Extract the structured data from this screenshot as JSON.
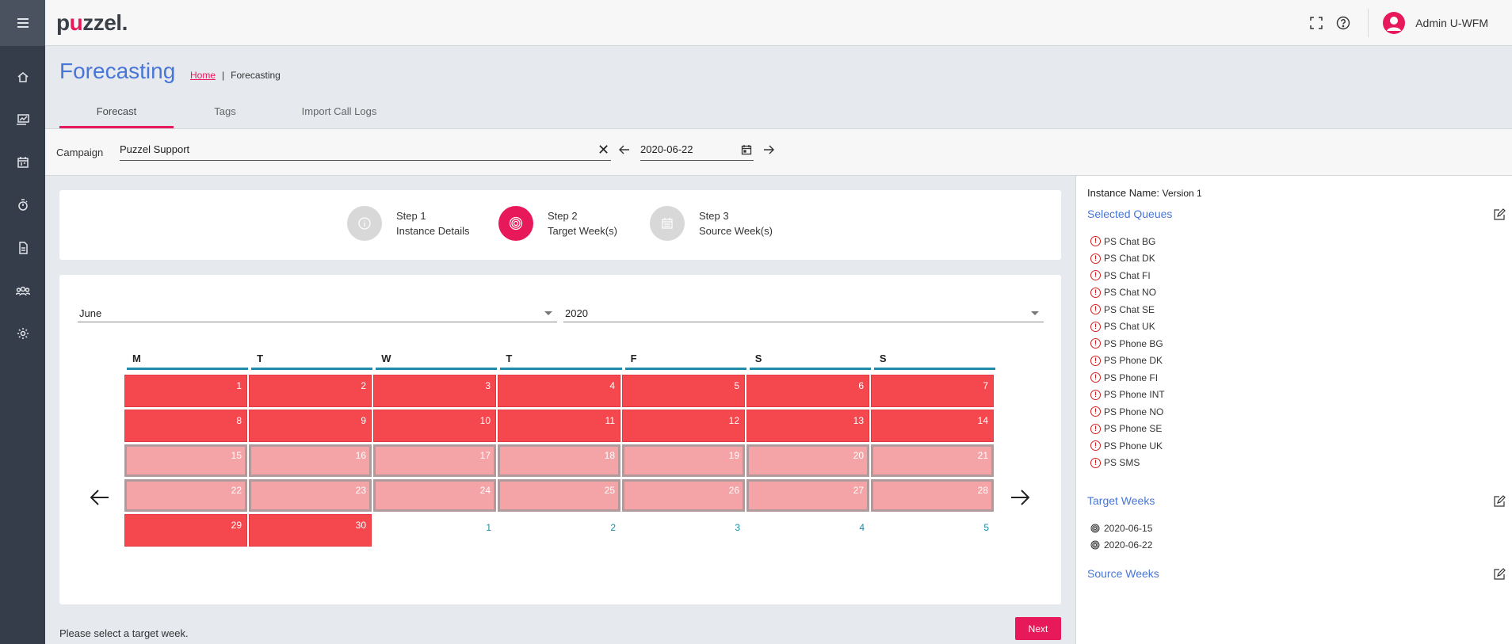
{
  "app": {
    "logo_text_pre": "p",
    "logo_text_u": "u",
    "logo_text_post": "zzel."
  },
  "topbar": {
    "user_name": "Admin U-WFM"
  },
  "header": {
    "title": "Forecasting",
    "breadcrumb": {
      "home": "Home",
      "separator": "|",
      "current": "Forecasting"
    },
    "tabs": [
      {
        "label": "Forecast",
        "active": true
      },
      {
        "label": "Tags",
        "active": false
      },
      {
        "label": "Import Call Logs",
        "active": false
      }
    ]
  },
  "campaign": {
    "label": "Campaign",
    "value": "Puzzel Support",
    "date": "2020-06-22"
  },
  "steps": [
    {
      "title": "Step 1",
      "subtitle": "Instance Details",
      "active": false
    },
    {
      "title": "Step 2",
      "subtitle": "Target Week(s)",
      "active": true
    },
    {
      "title": "Step 3",
      "subtitle": "Source Week(s)",
      "active": false
    }
  ],
  "calendar": {
    "month": "June",
    "year": "2020",
    "days_of_week": [
      "M",
      "T",
      "W",
      "T",
      "F",
      "S",
      "S"
    ],
    "rows": [
      [
        {
          "d": "1",
          "s": "target"
        },
        {
          "d": "2",
          "s": "target"
        },
        {
          "d": "3",
          "s": "target"
        },
        {
          "d": "4",
          "s": "target"
        },
        {
          "d": "5",
          "s": "target"
        },
        {
          "d": "6",
          "s": "target"
        },
        {
          "d": "7",
          "s": "target"
        }
      ],
      [
        {
          "d": "8",
          "s": "target"
        },
        {
          "d": "9",
          "s": "target"
        },
        {
          "d": "10",
          "s": "target"
        },
        {
          "d": "11",
          "s": "target"
        },
        {
          "d": "12",
          "s": "target"
        },
        {
          "d": "13",
          "s": "target"
        },
        {
          "d": "14",
          "s": "target"
        }
      ],
      [
        {
          "d": "15",
          "s": "light"
        },
        {
          "d": "16",
          "s": "light"
        },
        {
          "d": "17",
          "s": "light"
        },
        {
          "d": "18",
          "s": "light"
        },
        {
          "d": "19",
          "s": "light"
        },
        {
          "d": "20",
          "s": "light"
        },
        {
          "d": "21",
          "s": "light"
        }
      ],
      [
        {
          "d": "22",
          "s": "light"
        },
        {
          "d": "23",
          "s": "light"
        },
        {
          "d": "24",
          "s": "light"
        },
        {
          "d": "25",
          "s": "light"
        },
        {
          "d": "26",
          "s": "light"
        },
        {
          "d": "27",
          "s": "light"
        },
        {
          "d": "28",
          "s": "light"
        }
      ],
      [
        {
          "d": "29",
          "s": "target"
        },
        {
          "d": "30",
          "s": "target"
        },
        {
          "d": "1",
          "s": "empty"
        },
        {
          "d": "2",
          "s": "empty"
        },
        {
          "d": "3",
          "s": "empty"
        },
        {
          "d": "4",
          "s": "empty"
        },
        {
          "d": "5",
          "s": "empty"
        }
      ]
    ]
  },
  "footer": {
    "status": "Please select a target week.",
    "next_label": "Next"
  },
  "right_panel": {
    "instance_label": "Instance Name:",
    "instance_value": "Version 1",
    "selected_queues_title": "Selected Queues",
    "queues": [
      "PS Chat BG",
      "PS Chat DK",
      "PS Chat FI",
      "PS Chat NO",
      "PS Chat SE",
      "PS Chat UK",
      "PS Phone BG",
      "PS Phone DK",
      "PS Phone FI",
      "PS Phone INT",
      "PS Phone NO",
      "PS Phone SE",
      "PS Phone UK",
      "PS SMS"
    ],
    "target_weeks_title": "Target Weeks",
    "target_weeks": [
      "2020-06-15",
      "2020-06-22"
    ],
    "source_weeks_title": "Source Weeks"
  },
  "colors": {
    "accent": "#e8195a",
    "link_blue": "#4876d6",
    "target_red": "#f5474e",
    "light_red": "#f4a3a6",
    "teal": "#1e8ca8",
    "sidebar": "#353d4a"
  },
  "icons": [
    "menu-icon",
    "home-icon",
    "reports-icon",
    "calendar-icon",
    "stopwatch-icon",
    "document-icon",
    "users-icon",
    "settings-icon",
    "fullscreen-icon",
    "help-icon",
    "user-icon",
    "close-icon",
    "arrow-left-icon",
    "calendar-picker-icon",
    "arrow-right-icon",
    "info-icon",
    "target-icon",
    "edit-icon",
    "warning-icon"
  ]
}
